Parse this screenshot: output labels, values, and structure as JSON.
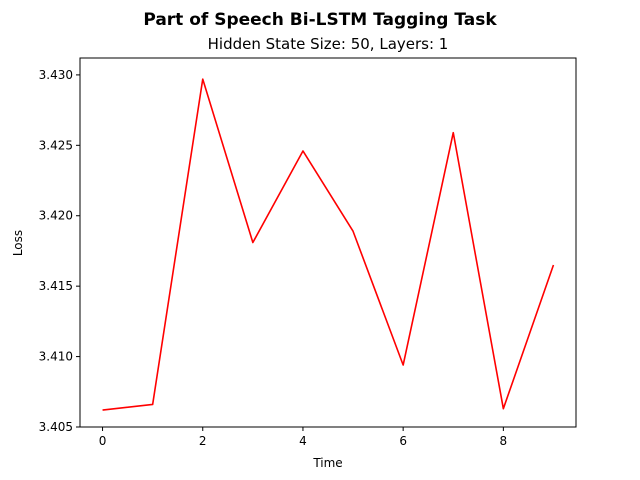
{
  "chart_data": {
    "type": "line",
    "title": "Part of Speech Bi-LSTM Tagging Task",
    "subtitle": "Hidden State Size: 50, Layers: 1",
    "xlabel": "Time",
    "ylabel": "Loss",
    "x": [
      0,
      1,
      2,
      3,
      4,
      5,
      6,
      7,
      8,
      9
    ],
    "series": [
      {
        "values": [
          3.4062,
          3.4066,
          3.4297,
          3.4181,
          3.4246,
          3.4189,
          3.4094,
          3.4259,
          3.4063,
          3.4165
        ],
        "color": "#ff0000"
      }
    ],
    "xlim": [
      -0.45,
      9.45
    ],
    "ylim": [
      3.405,
      3.4312
    ],
    "xticks": [
      0,
      2,
      4,
      6,
      8
    ],
    "xtick_labels": [
      "0",
      "2",
      "4",
      "6",
      "8"
    ],
    "yticks": [
      3.405,
      3.41,
      3.415,
      3.42,
      3.425,
      3.43
    ],
    "ytick_labels": [
      "3.405",
      "3.410",
      "3.415",
      "3.420",
      "3.425",
      "3.430"
    ],
    "grid": false,
    "legend": "none"
  }
}
